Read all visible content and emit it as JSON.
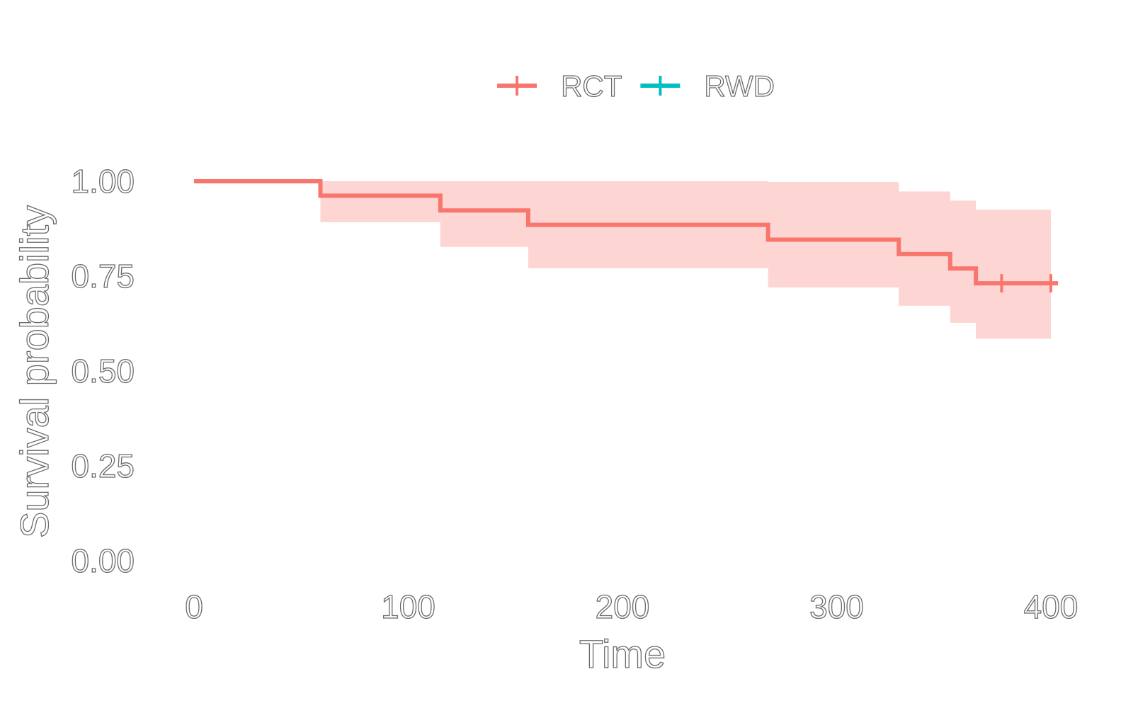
{
  "chart_data": {
    "type": "line",
    "subtype": "kaplan-meier-step",
    "title": "",
    "xlabel": "Time",
    "ylabel": "Survival probability",
    "xlim": [
      0,
      400
    ],
    "ylim": [
      0,
      1
    ],
    "x_ticks": [
      0,
      100,
      200,
      300,
      400
    ],
    "x_tick_labels": [
      "0",
      "100",
      "200",
      "300",
      "400"
    ],
    "y_ticks": [
      0,
      0.25,
      0.5,
      0.75,
      1
    ],
    "y_tick_labels": [
      "0.00",
      "0.25",
      "0.50",
      "0.75",
      "1.00"
    ],
    "grid": false,
    "legend": {
      "position": "top",
      "entries": [
        {
          "name": "RCT",
          "color": "#F8766D"
        },
        {
          "name": "RWD",
          "color": "#00BFC4"
        }
      ]
    },
    "series": [
      {
        "name": "RCT",
        "color": "#F8766D",
        "ribbon_color": "#FDD5D2",
        "steps": [
          {
            "x": 0,
            "surv": 1.0,
            "lower": 1.0,
            "upper": 1.0
          },
          {
            "x": 59,
            "surv": 0.962,
            "lower": 0.892,
            "upper": 1.0
          },
          {
            "x": 115,
            "surv": 0.923,
            "lower": 0.827,
            "upper": 1.0
          },
          {
            "x": 156,
            "surv": 0.885,
            "lower": 0.771,
            "upper": 1.0
          },
          {
            "x": 268,
            "surv": 0.846,
            "lower": 0.72,
            "upper": 0.998
          },
          {
            "x": 329,
            "surv": 0.808,
            "lower": 0.672,
            "upper": 0.973
          },
          {
            "x": 353,
            "surv": 0.77,
            "lower": 0.627,
            "upper": 0.949
          },
          {
            "x": 365,
            "surv": 0.731,
            "lower": 0.585,
            "upper": 0.925
          }
        ],
        "end_x": 400,
        "censor_marks": [
          377,
          400
        ]
      },
      {
        "name": "RWD",
        "color": "#00BFC4",
        "steps": []
      }
    ]
  }
}
